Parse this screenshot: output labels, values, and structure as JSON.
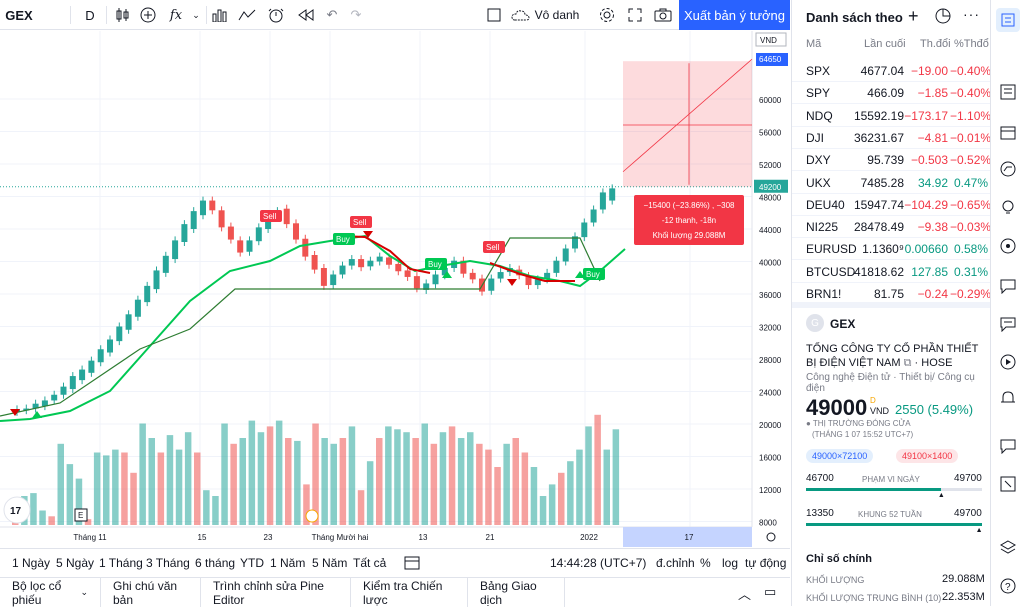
{
  "toolbar": {
    "symbol": "GEX",
    "interval": "D",
    "indicator_icon": "fx",
    "chart_type_label": "Vô danh",
    "publish_label": "Xuất bản ý tưởng"
  },
  "chart": {
    "currency": "VND",
    "price_labels": [
      "64650",
      "60000",
      "56000",
      "52000",
      "48000",
      "44000",
      "40000",
      "36000",
      "32000",
      "28000",
      "24000",
      "20000",
      "16000",
      "12000",
      "8000"
    ],
    "current_price": "49200",
    "volume_labels": [],
    "time_labels": [
      "Tháng 11",
      "15",
      "23",
      "Tháng Mười hai",
      "13",
      "21",
      "2022",
      "17"
    ],
    "signals": {
      "sell": "Sell",
      "buy": "Buy"
    },
    "measure_box": {
      "line1": "−15400 (−23.86%) , −308",
      "line2": "-12 thanh, -18n",
      "line3": "Khối lượng 29.088M"
    },
    "tv_logo": "17",
    "e_marker": "E"
  },
  "bottom": {
    "ranges": [
      "1 Ngày",
      "5 Ngày",
      "1 Tháng",
      "3 Tháng",
      "6 tháng",
      "YTD",
      "1 Năm",
      "5 Năm",
      "Tất cả"
    ],
    "time": "14:44:28 (UTC+7)",
    "adj": "đ.chỉnh",
    "pct": "%",
    "log": "log",
    "auto": "tự động"
  },
  "panels": [
    "Bộ lọc cổ phiếu",
    "Ghi chú văn bản",
    "Trình chỉnh sửa Pine Editor",
    "Kiểm tra Chiến lược",
    "Bảng Giao dịch"
  ],
  "watchlist": {
    "title": "Danh sách theo",
    "cols": [
      "Mã",
      "Lần cuối",
      "Th.đổi",
      "%Thđổ"
    ],
    "rows": [
      {
        "sym": "SPX",
        "last": "4677.04",
        "chg": "−19.00",
        "pct": "−0.40%",
        "up": false
      },
      {
        "sym": "SPY",
        "last": "466.09",
        "chg": "−1.85",
        "pct": "−0.40%",
        "up": false
      },
      {
        "sym": "NDQ",
        "last": "15592.19",
        "chg": "−173.17",
        "pct": "−1.10%",
        "up": false
      },
      {
        "sym": "DJI",
        "last": "36231.67",
        "chg": "−4.81",
        "pct": "−0.01%",
        "up": false
      },
      {
        "sym": "DXY",
        "last": "95.739",
        "chg": "−0.503",
        "pct": "−0.52%",
        "up": false
      },
      {
        "sym": "UKX",
        "last": "7485.28",
        "chg": "34.92",
        "pct": "0.47%",
        "up": true
      },
      {
        "sym": "DEU40",
        "last": "15947.74",
        "chg": "−104.29",
        "pct": "−0.65%",
        "up": false
      },
      {
        "sym": "NI225",
        "last": "28478.49",
        "chg": "−9.38",
        "pct": "−0.03%",
        "up": false
      },
      {
        "sym": "EURUSD",
        "last": "1.1360⁹",
        "chg": "0.00660",
        "pct": "0.58%",
        "up": true
      },
      {
        "sym": "BTCUSD",
        "last": "41818.62",
        "chg": "127.85",
        "pct": "0.31%",
        "up": true
      },
      {
        "sym": "BRN1!",
        "last": "81.75",
        "chg": "−0.24",
        "pct": "−0.29%",
        "up": false
      }
    ]
  },
  "details": {
    "symbol": "GEX",
    "logo_letter": "G",
    "name": "TỔNG CÔNG TY CỔ PHẦN THIẾT BỊ ĐIỆN VIỆT NAM",
    "exchange": "HOSE",
    "sector": "Công nghệ Điện tử",
    "industry": "Thiết bị/ Công cụ điện",
    "price": "49000",
    "price_sup": "D",
    "currency": "VND",
    "change": "2550 (5.49%)",
    "market_status": "THỊ TRƯỜNG ĐÓNG CỬA",
    "market_time": "(THÁNG 1 07 15:52 UTC+7)",
    "bid": "49000×72100",
    "ask": "49100×1400",
    "day_low": "46700",
    "day_label": "PHẠM VI NGÀY",
    "day_high": "49700",
    "w52_low": "13350",
    "w52_label": "KHUNG 52 TUẦN",
    "w52_high": "49700",
    "key_stats_title": "Chỉ số chính",
    "volume_label": "KHỐI LƯỢNG",
    "volume": "29.088M",
    "avg_vol_label": "KHỐI LƯỢNG TRUNG BÌNH (10)",
    "avg_vol": "22.353M"
  }
}
